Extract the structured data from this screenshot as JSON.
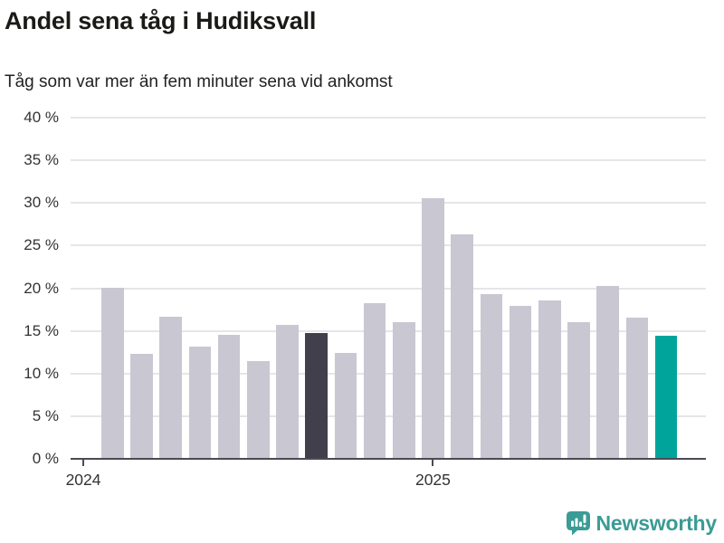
{
  "chart_data": {
    "type": "bar",
    "title": "Andel sena tåg i Hudiksvall",
    "subtitle": "Tåg som var mer än fem minuter sena vid ankomst",
    "unit": "%",
    "ylim": [
      0,
      40
    ],
    "grid": "horizontal",
    "legend": "none",
    "y_ticks": [
      {
        "value": 0,
        "label": "0 %"
      },
      {
        "value": 5,
        "label": "5 %"
      },
      {
        "value": 10,
        "label": "10 %"
      },
      {
        "value": 15,
        "label": "15 %"
      },
      {
        "value": 20,
        "label": "20 %"
      },
      {
        "value": 25,
        "label": "25 %"
      },
      {
        "value": 30,
        "label": "30 %"
      },
      {
        "value": 35,
        "label": "35 %"
      },
      {
        "value": 40,
        "label": "40 %"
      }
    ],
    "x_ticks": [
      {
        "label": "2024",
        "bar_index": -1
      },
      {
        "label": "2025",
        "bar_index": 11
      }
    ],
    "values": [
      20.1,
      12.3,
      16.7,
      13.2,
      14.5,
      11.5,
      15.7,
      14.8,
      12.4,
      18.2,
      16.0,
      30.6,
      26.3,
      19.3,
      17.9,
      18.6,
      16.0,
      20.3,
      16.5,
      14.4
    ],
    "highlight_dark_index": 7,
    "highlight_accent_index": 19
  },
  "footer": {
    "brand": "Newsworthy"
  },
  "colors": {
    "bar_default": "#c9c7d2",
    "bar_dark": "#423f4c",
    "bar_accent": "#00a49b",
    "gridline": "#e6e5e9",
    "axis": "#4c4a54",
    "title_text": "#1a1a17",
    "subtitle_text": "#222222",
    "tick_text": "#333333",
    "brand_teal": "#3b9b95"
  }
}
